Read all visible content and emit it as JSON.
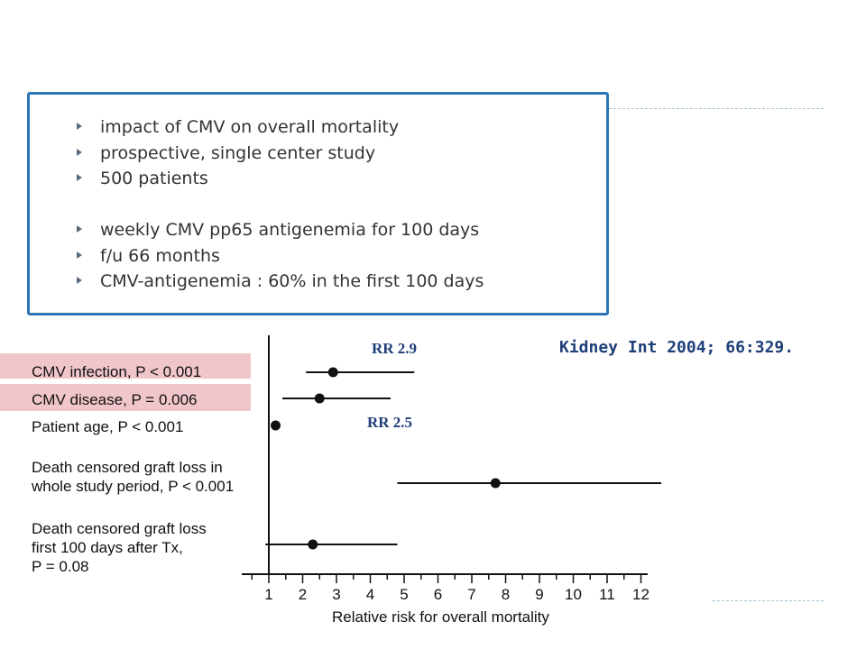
{
  "bullets": [
    "impact of CMV on overall mortality",
    "prospective, single center study",
    "500 patients",
    "weekly CMV pp65 antigenemia for 100 days",
    "f/u 66 months",
    "CMV-antigenemia : 60%  in the first 100 days"
  ],
  "citation": "Kidney Int 2004; 66:329.",
  "rr_labels": [
    "RR 2.9",
    "RR 2.5"
  ],
  "colors": {
    "box_border": "#2e75b6",
    "highlight": "#f0c6cb",
    "annotation": "#1f3f7a"
  },
  "chart_data": {
    "type": "forest",
    "xlabel": "Relative risk for overall mortality",
    "ylabel": "",
    "xlim": [
      0.2,
      12.2
    ],
    "xticks": [
      1,
      2,
      3,
      4,
      5,
      6,
      7,
      8,
      9,
      10,
      11,
      12
    ],
    "grid": false,
    "reference_line": 1,
    "rows": [
      {
        "label": "CMV infection, P < 0.001",
        "estimate": 2.9,
        "low": 2.1,
        "high": 5.3,
        "highlighted": true
      },
      {
        "label": "CMV disease, P = 0.006",
        "estimate": 2.5,
        "low": 1.4,
        "high": 4.6,
        "highlighted": true
      },
      {
        "label": "Patient age, P < 0.001",
        "estimate": 1.2,
        "low": 1.15,
        "high": 1.25,
        "highlighted": false
      },
      {
        "label": "Death censored graft loss in\nwhole study period, P < 0.001",
        "estimate": 7.7,
        "low": 4.8,
        "high": 12.6,
        "highlighted": false
      },
      {
        "label": "Death censored graft loss\nfirst 100 days after Tx,\nP = 0.08",
        "estimate": 2.3,
        "low": 0.9,
        "high": 4.8,
        "highlighted": false
      }
    ]
  }
}
